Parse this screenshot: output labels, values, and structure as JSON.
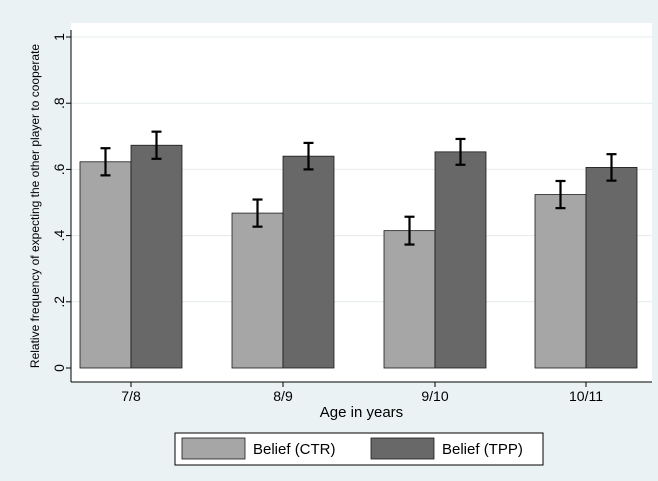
{
  "chart_data": {
    "type": "bar",
    "xlabel": "Age in years",
    "ylabel": "Relative frequency of expecting the other player to cooperate",
    "categories": [
      "7/8",
      "8/9",
      "9/10",
      "10/11"
    ],
    "ylim": [
      0,
      1
    ],
    "yticks": [
      0,
      0.2,
      0.4,
      0.6,
      0.8,
      1
    ],
    "ytick_labels": [
      "0",
      ".2",
      ".4",
      ".6",
      ".8",
      "1"
    ],
    "grid": true,
    "legend_position": "bottom",
    "series": [
      {
        "name": "Belief (CTR)",
        "color": "#a6a6a6",
        "values": [
          0.623,
          0.468,
          0.415,
          0.524
        ],
        "error_low": [
          0.582,
          0.427,
          0.373,
          0.483
        ],
        "error_high": [
          0.664,
          0.509,
          0.457,
          0.565
        ]
      },
      {
        "name": "Belief (TPP)",
        "color": "#686868",
        "values": [
          0.673,
          0.64,
          0.653,
          0.606
        ],
        "error_low": [
          0.632,
          0.6,
          0.614,
          0.566
        ],
        "error_high": [
          0.714,
          0.68,
          0.692,
          0.646
        ]
      }
    ]
  }
}
